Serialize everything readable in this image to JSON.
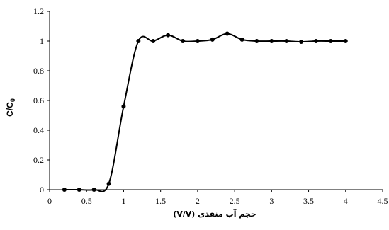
{
  "chart_data": {
    "type": "line",
    "title": "",
    "xlabel": "حجم آب منفذی (V/V)",
    "ylabel": "C/C0",
    "xlim": [
      0,
      4.5
    ],
    "ylim": [
      0,
      1.2
    ],
    "xticks": [
      "0",
      "0.5",
      "1",
      "1.5",
      "2",
      "2.5",
      "3",
      "3.5",
      "4",
      "4.5"
    ],
    "yticks": [
      "0",
      "0.2",
      "0.4",
      "0.6",
      "0.8",
      "1",
      "1.2"
    ],
    "grid": false,
    "legend": "none",
    "series": [
      {
        "color": "#000000",
        "marker": "circle",
        "smooth": true,
        "x": [
          0.2,
          0.4,
          0.6,
          0.8,
          1.0,
          1.2,
          1.4,
          1.6,
          1.8,
          2.0,
          2.2,
          2.4,
          2.6,
          2.8,
          3.0,
          3.2,
          3.4,
          3.6,
          3.8,
          4.0
        ],
        "y": [
          0.0,
          0.0,
          0.0,
          0.04,
          0.56,
          1.0,
          1.0,
          1.04,
          1.0,
          1.0,
          1.01,
          1.05,
          1.01,
          1.0,
          1.0,
          1.0,
          0.995,
          1.0,
          1.0,
          1.0
        ]
      }
    ]
  }
}
